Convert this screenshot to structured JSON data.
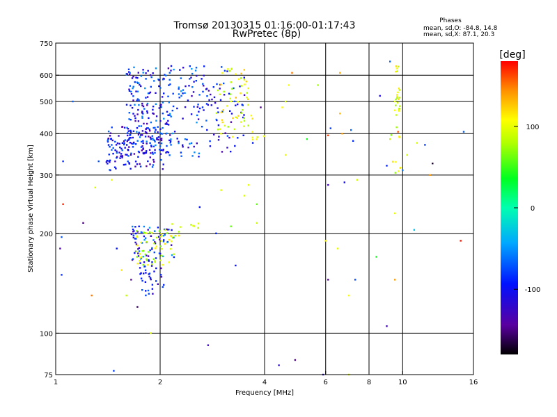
{
  "chart_data": {
    "type": "scatter",
    "title": "Tromsø 20130315 01:16:00-01:17:43",
    "subtitle": "RwPretec (8p)",
    "xlabel": "Frequency [MHz]",
    "ylabel": "Stationary phase Virtual Height [km]",
    "x_scale": "log",
    "y_scale": "log",
    "xlim": [
      1,
      16
    ],
    "ylim": [
      75,
      750
    ],
    "x_ticks": [
      1,
      2,
      4,
      6,
      8,
      10,
      16
    ],
    "x_tick_labels": [
      "1",
      "2",
      "4",
      "6",
      "8",
      "10",
      "16"
    ],
    "y_ticks": [
      75,
      100,
      200,
      300,
      400,
      500,
      600,
      750
    ],
    "y_tick_labels": [
      "75",
      "100",
      "200",
      "300",
      "400",
      "500",
      "600",
      "750"
    ],
    "x_gridlines": [
      2,
      4,
      6,
      8,
      10
    ],
    "y_gridlines": [
      100,
      200,
      300,
      400,
      500,
      600
    ],
    "grid": true,
    "stats": {
      "heading": "Phases",
      "line_o": "mean, sd,O: -84.8, 14.8",
      "line_x": "mean, sd,X:  87.1, 20.3"
    },
    "colorbar": {
      "label": "[deg]",
      "range": [
        -180,
        180
      ],
      "ticks": [
        -100,
        0,
        100
      ],
      "tick_labels": [
        "-100",
        "0",
        "100"
      ],
      "colormap": "rainbow"
    },
    "points_explicit": [
      [
        1.05,
        330,
        -85
      ],
      [
        1.05,
        245,
        170
      ],
      [
        1.03,
        180,
        -140
      ],
      [
        1.04,
        150,
        -85
      ],
      [
        1.04,
        195,
        -70
      ],
      [
        1.12,
        500,
        -65
      ],
      [
        1.2,
        215,
        -150
      ],
      [
        1.3,
        275,
        95
      ],
      [
        1.33,
        330,
        -75
      ],
      [
        1.45,
        290,
        100
      ],
      [
        1.5,
        180,
        -95
      ],
      [
        1.55,
        155,
        115
      ],
      [
        1.6,
        130,
        85
      ],
      [
        1.65,
        145,
        -145
      ],
      [
        1.72,
        120,
        -160
      ],
      [
        1.88,
        100,
        100
      ],
      [
        1.47,
        77,
        -80
      ],
      [
        1.27,
        130,
        150
      ],
      [
        2.75,
        92,
        -130
      ],
      [
        2.6,
        240,
        -95
      ],
      [
        2.9,
        200,
        -90
      ],
      [
        3.0,
        270,
        95
      ],
      [
        3.2,
        210,
        60
      ],
      [
        3.3,
        160,
        -100
      ],
      [
        3.5,
        260,
        95
      ],
      [
        3.6,
        280,
        100
      ],
      [
        3.8,
        245,
        60
      ],
      [
        3.8,
        215,
        90
      ],
      [
        3.9,
        480,
        -150
      ],
      [
        3.7,
        375,
        -90
      ],
      [
        4.4,
        80,
        -120
      ],
      [
        4.9,
        83,
        -150
      ],
      [
        4.8,
        610,
        150
      ],
      [
        4.7,
        560,
        105
      ],
      [
        4.6,
        500,
        95
      ],
      [
        4.5,
        480,
        110
      ],
      [
        4.6,
        345,
        100
      ],
      [
        5.3,
        385,
        40
      ],
      [
        5.7,
        560,
        75
      ],
      [
        6.0,
        190,
        110
      ],
      [
        6.1,
        395,
        165
      ],
      [
        6.2,
        415,
        -80
      ],
      [
        6.1,
        280,
        -130
      ],
      [
        6.1,
        145,
        -150
      ],
      [
        6.5,
        180,
        100
      ],
      [
        6.6,
        460,
        130
      ],
      [
        6.7,
        400,
        140
      ],
      [
        6.6,
        610,
        135
      ],
      [
        6.8,
        285,
        -105
      ],
      [
        7.0,
        130,
        105
      ],
      [
        7.1,
        410,
        -65
      ],
      [
        7.2,
        380,
        -85
      ],
      [
        7.3,
        145,
        -75
      ],
      [
        7.4,
        290,
        95
      ],
      [
        7.0,
        75,
        100
      ],
      [
        8.4,
        170,
        40
      ],
      [
        8.6,
        520,
        -110
      ],
      [
        9.0,
        105,
        -130
      ],
      [
        9.2,
        660,
        -65
      ],
      [
        9.5,
        230,
        100
      ],
      [
        9.7,
        405,
        160
      ],
      [
        10.0,
        310,
        -60
      ],
      [
        10.3,
        345,
        90
      ],
      [
        10.8,
        205,
        -30
      ],
      [
        11.0,
        375,
        95
      ],
      [
        11.6,
        370,
        -80
      ],
      [
        12.2,
        325,
        -170
      ],
      [
        12.0,
        300,
        140
      ],
      [
        14.7,
        190,
        175
      ],
      [
        15.0,
        405,
        -70
      ],
      [
        9.5,
        145,
        140
      ],
      [
        9.0,
        320,
        -90
      ],
      [
        9.5,
        470,
        105
      ],
      [
        9.5,
        500,
        95
      ],
      [
        9.2,
        385,
        90
      ],
      [
        5.9,
        75,
        -120
      ],
      [
        1.9,
        140,
        -90
      ],
      [
        1.9,
        136,
        -100
      ]
    ],
    "point_clusters": [
      {
        "x": [
          1.4,
          2.05
        ],
        "y": [
          310,
          420
        ],
        "phase": -105,
        "jitter": 40,
        "count": 150,
        "seed": 11
      },
      {
        "x": [
          1.6,
          2.05
        ],
        "y": [
          350,
          640
        ],
        "phase": -95,
        "jitter": 45,
        "count": 150,
        "seed": 12
      },
      {
        "x": [
          2.0,
          2.6
        ],
        "y": [
          340,
          640
        ],
        "phase": -90,
        "jitter": 45,
        "count": 110,
        "seed": 13
      },
      {
        "x": [
          2.6,
          3.6
        ],
        "y": [
          350,
          640
        ],
        "phase": -100,
        "jitter": 40,
        "count": 70,
        "seed": 14
      },
      {
        "x": [
          2.9,
          3.6
        ],
        "y": [
          390,
          640
        ],
        "phase": 100,
        "jitter": 30,
        "count": 55,
        "seed": 15
      },
      {
        "x": [
          3.6,
          4.0
        ],
        "y": [
          380,
          470
        ],
        "phase": 100,
        "jitter": 30,
        "count": 8,
        "seed": 16
      },
      {
        "x": [
          1.65,
          2.2
        ],
        "y": [
          165,
          210
        ],
        "phase": -90,
        "jitter": 50,
        "count": 75,
        "seed": 17
      },
      {
        "x": [
          1.7,
          2.2
        ],
        "y": [
          160,
          205
        ],
        "phase": 90,
        "jitter": 30,
        "count": 55,
        "seed": 18
      },
      {
        "x": [
          1.75,
          2.05
        ],
        "y": [
          130,
          165
        ],
        "phase": -100,
        "jitter": 35,
        "count": 35,
        "seed": 19
      },
      {
        "x": [
          2.1,
          2.6
        ],
        "y": [
          195,
          215
        ],
        "phase": 85,
        "jitter": 30,
        "count": 10,
        "seed": 20
      },
      {
        "x": [
          9.5,
          9.9
        ],
        "y": [
          420,
          650
        ],
        "phase": 100,
        "jitter": 25,
        "count": 22,
        "seed": 21
      },
      {
        "x": [
          9.2,
          9.9
        ],
        "y": [
          300,
          420
        ],
        "phase": 95,
        "jitter": 30,
        "count": 10,
        "seed": 22
      }
    ]
  }
}
